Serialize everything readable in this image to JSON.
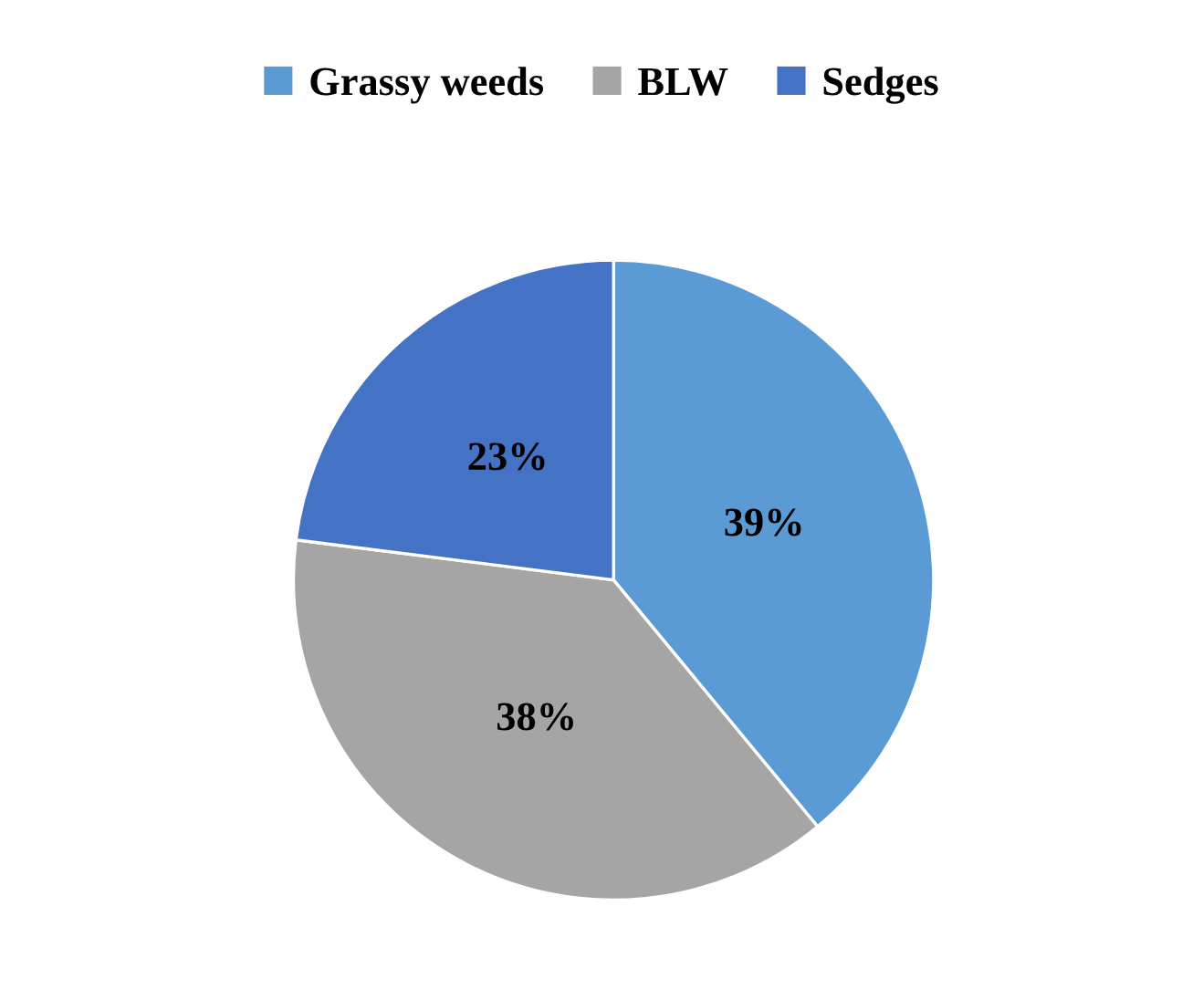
{
  "chart_data": {
    "type": "pie",
    "categories": [
      "Grassy weeds",
      "BLW",
      "Sedges"
    ],
    "values": [
      39,
      38,
      23
    ],
    "value_labels": [
      "39%",
      "38%",
      "23%"
    ],
    "colors": [
      "#5b9bd5",
      "#a5a5a5",
      "#4472c4"
    ],
    "legend": "top"
  }
}
